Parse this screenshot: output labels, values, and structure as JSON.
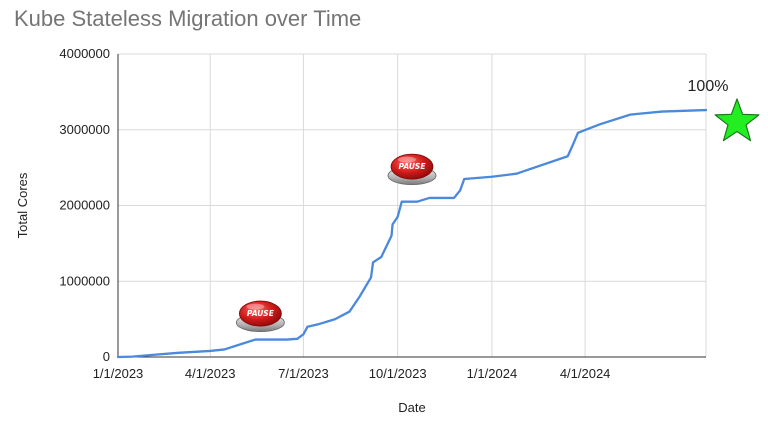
{
  "chart_data": {
    "type": "line",
    "title": "Kube Stateless Migration over Time",
    "xlabel": "Date",
    "ylabel": "Total Cores",
    "x_tick_labels": [
      "1/1/2023",
      "4/1/2023",
      "7/1/2023",
      "10/1/2023",
      "1/1/2024",
      "4/1/2024"
    ],
    "y_tick_labels": [
      "0",
      "1000000",
      "2000000",
      "3000000",
      "4000000"
    ],
    "ylim": [
      0,
      4000000
    ],
    "xlim": [
      "2023-01-01",
      "2024-07-28"
    ],
    "grid": true,
    "series": [
      {
        "color": "#4a89dc",
        "points": [
          {
            "x": "2023-01-01",
            "y": 0
          },
          {
            "x": "2023-01-15",
            "y": 5000
          },
          {
            "x": "2023-02-01",
            "y": 25000
          },
          {
            "x": "2023-03-01",
            "y": 55000
          },
          {
            "x": "2023-04-01",
            "y": 80000
          },
          {
            "x": "2023-04-15",
            "y": 100000
          },
          {
            "x": "2023-05-01",
            "y": 170000
          },
          {
            "x": "2023-05-15",
            "y": 230000
          },
          {
            "x": "2023-06-01",
            "y": 230000
          },
          {
            "x": "2023-06-15",
            "y": 230000
          },
          {
            "x": "2023-06-25",
            "y": 240000
          },
          {
            "x": "2023-07-01",
            "y": 300000
          },
          {
            "x": "2023-07-05",
            "y": 400000
          },
          {
            "x": "2023-07-15",
            "y": 430000
          },
          {
            "x": "2023-08-01",
            "y": 500000
          },
          {
            "x": "2023-08-15",
            "y": 600000
          },
          {
            "x": "2023-08-25",
            "y": 800000
          },
          {
            "x": "2023-09-05",
            "y": 1050000
          },
          {
            "x": "2023-09-07",
            "y": 1250000
          },
          {
            "x": "2023-09-15",
            "y": 1320000
          },
          {
            "x": "2023-09-25",
            "y": 1600000
          },
          {
            "x": "2023-09-26",
            "y": 1750000
          },
          {
            "x": "2023-10-01",
            "y": 1850000
          },
          {
            "x": "2023-10-05",
            "y": 2050000
          },
          {
            "x": "2023-10-20",
            "y": 2050000
          },
          {
            "x": "2023-11-01",
            "y": 2100000
          },
          {
            "x": "2023-11-25",
            "y": 2100000
          },
          {
            "x": "2023-12-01",
            "y": 2200000
          },
          {
            "x": "2023-12-05",
            "y": 2350000
          },
          {
            "x": "2024-01-01",
            "y": 2380000
          },
          {
            "x": "2024-01-25",
            "y": 2420000
          },
          {
            "x": "2024-03-15",
            "y": 2650000
          },
          {
            "x": "2024-03-20",
            "y": 2800000
          },
          {
            "x": "2024-03-25",
            "y": 2960000
          },
          {
            "x": "2024-04-15",
            "y": 3070000
          },
          {
            "x": "2024-05-15",
            "y": 3200000
          },
          {
            "x": "2024-06-15",
            "y": 3240000
          },
          {
            "x": "2024-07-28",
            "y": 3260000
          }
        ]
      }
    ],
    "annotations": {
      "completion_label": "100%",
      "completion_color": "#22ee22",
      "pause_markers": [
        {
          "label": "PAUSE",
          "x": "2023-05-20",
          "y": 560000
        },
        {
          "label": "PAUSE",
          "x": "2023-10-15",
          "y": 2500000
        }
      ]
    }
  }
}
